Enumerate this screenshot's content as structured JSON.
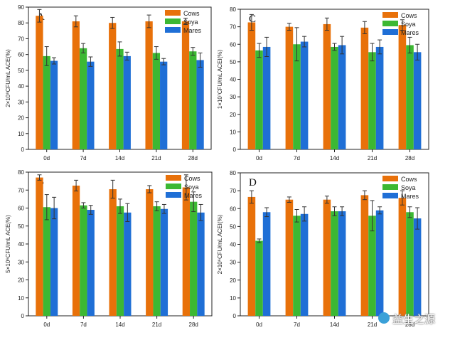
{
  "chart_data": [
    {
      "type": "bar",
      "panel": "A",
      "title": "A",
      "ylabel": "2×10⁸CFU/mL ACE(%)",
      "xlabel": "",
      "ylim": [
        0,
        90
      ],
      "yticks": [
        0,
        10,
        20,
        30,
        40,
        50,
        60,
        70,
        80,
        90
      ],
      "categories": [
        "0d",
        "7d",
        "14d",
        "21d",
        "28d"
      ],
      "legend_position": "top-right",
      "series": [
        {
          "name": "Cows",
          "color": "#e8710a",
          "values": [
            84.5,
            81,
            80,
            81,
            81
          ],
          "errors": [
            4,
            3.5,
            3.5,
            4,
            2
          ]
        },
        {
          "name": "Soya",
          "color": "#3cb833",
          "values": [
            59,
            64,
            63.5,
            61,
            62
          ],
          "errors": [
            6,
            3,
            4.5,
            4,
            2.5
          ]
        },
        {
          "name": "Mares",
          "color": "#1f6fd6",
          "values": [
            56,
            55.5,
            59,
            55.5,
            56.5
          ],
          "errors": [
            2,
            3,
            2.5,
            2,
            4.5
          ]
        }
      ]
    },
    {
      "type": "bar",
      "panel": "C",
      "title": "C",
      "ylabel": "1×10⁷CFU/mL ACEI(%)",
      "xlabel": "",
      "ylim": [
        0,
        80
      ],
      "yticks": [
        0,
        10,
        20,
        30,
        40,
        50,
        60,
        70,
        80
      ],
      "categories": [
        "0d",
        "7d",
        "14d",
        "21d",
        "28d"
      ],
      "legend_position": "top-right",
      "series": [
        {
          "name": "Cows",
          "color": "#e8710a",
          "values": [
            72.5,
            70,
            71.5,
            69.5,
            71
          ],
          "errors": [
            4.5,
            2,
            3.5,
            3.5,
            3
          ]
        },
        {
          "name": "Soya",
          "color": "#3cb833",
          "values": [
            56.5,
            60,
            58.5,
            55.5,
            59.5
          ],
          "errors": [
            4,
            9.5,
            2,
            5,
            4.5
          ]
        },
        {
          "name": "Mares",
          "color": "#1f6fd6",
          "values": [
            58.5,
            61.5,
            59.5,
            58.5,
            55.5
          ],
          "errors": [
            5.5,
            3,
            5,
            4,
            4.5
          ]
        }
      ]
    },
    {
      "type": "bar",
      "panel": "B",
      "title": "B",
      "ylabel": "5×10⁶CFU/mL ACE(%)",
      "xlabel": "",
      "ylim": [
        0,
        80
      ],
      "yticks": [
        0,
        10,
        20,
        30,
        40,
        50,
        60,
        70,
        80
      ],
      "categories": [
        "0d",
        "7d",
        "14d",
        "21d",
        "28d"
      ],
      "legend_position": "top-right",
      "series": [
        {
          "name": "Cows",
          "color": "#e8710a",
          "values": [
            77,
            72.5,
            70.5,
            70.5,
            71.5
          ],
          "errors": [
            1.5,
            3,
            5,
            2,
            7
          ]
        },
        {
          "name": "Soya",
          "color": "#3cb833",
          "values": [
            60.5,
            61.5,
            61,
            61,
            63.5
          ],
          "errors": [
            7,
            1.5,
            4,
            2.5,
            5.5
          ]
        },
        {
          "name": "Mares",
          "color": "#1f6fd6",
          "values": [
            60,
            59,
            57.5,
            59.5,
            57.5
          ],
          "errors": [
            6,
            2.5,
            5,
            2.5,
            4.5
          ]
        }
      ]
    },
    {
      "type": "bar",
      "panel": "D",
      "title": "D",
      "ylabel": "2×10⁶CFU/mL ACEI(%)",
      "xlabel": "",
      "ylim": [
        0,
        80
      ],
      "yticks": [
        0,
        10,
        20,
        30,
        40,
        50,
        60,
        70,
        80
      ],
      "categories": [
        "0d",
        "7d",
        "14d",
        "21d",
        "28d"
      ],
      "legend_position": "top-right",
      "series": [
        {
          "name": "Cows",
          "color": "#e8710a",
          "values": [
            66.5,
            65,
            65,
            67.5,
            66
          ],
          "errors": [
            3.5,
            1.5,
            2,
            2.5,
            4
          ]
        },
        {
          "name": "Soya",
          "color": "#3cb833",
          "values": [
            42,
            56,
            58.5,
            56,
            58
          ],
          "errors": [
            1,
            3.5,
            2.5,
            8.5,
            3
          ]
        },
        {
          "name": "Mares",
          "color": "#1f6fd6",
          "values": [
            58,
            57,
            58.5,
            59,
            54.5
          ],
          "errors": [
            2.5,
            4,
            2.5,
            2,
            6
          ]
        }
      ]
    }
  ],
  "watermark": {
    "text": "益生之源",
    "icon": "wechat-logo-icon"
  }
}
